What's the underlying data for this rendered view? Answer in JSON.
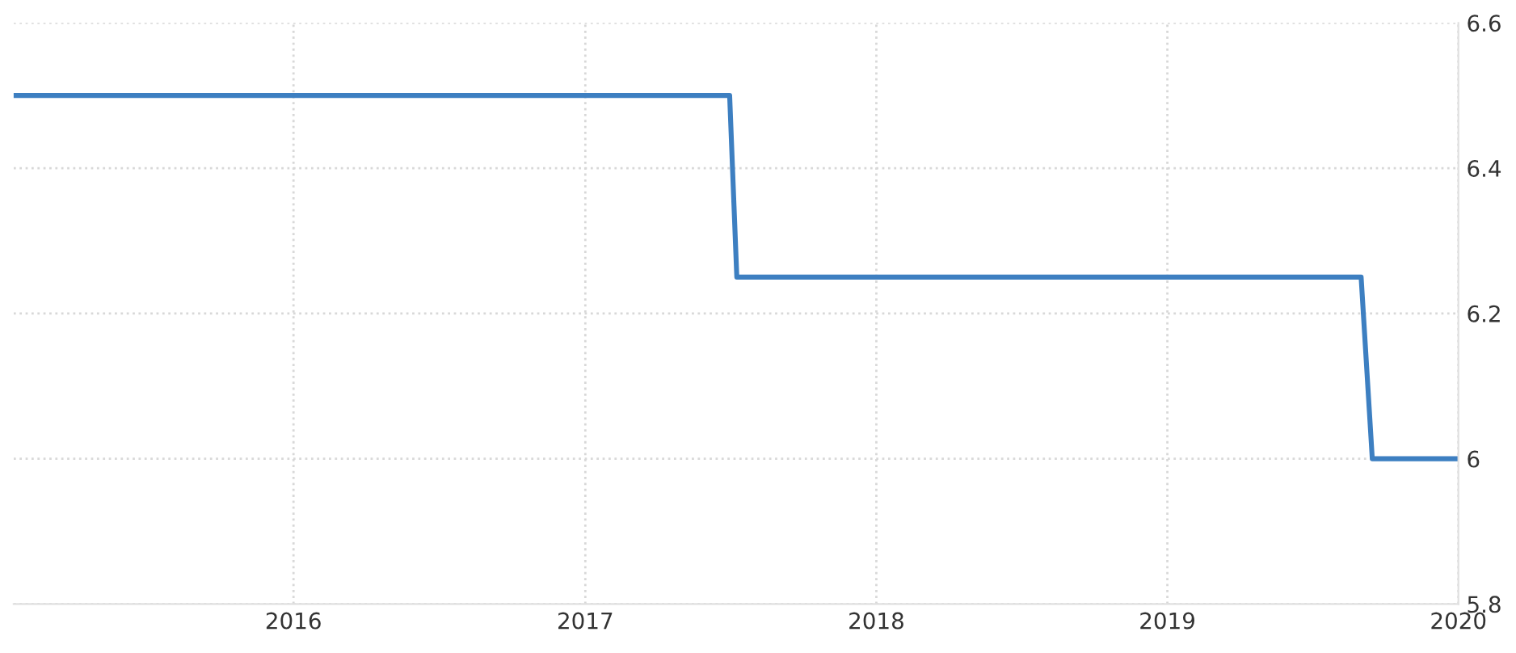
{
  "chart_data": {
    "type": "line",
    "x": [
      "2015-01-15",
      "2017-07-01",
      "2017-07-10",
      "2019-09-01",
      "2019-09-15",
      "2020-01-01"
    ],
    "series": [
      {
        "color": "#3d7fc1",
        "values": [
          6.5,
          6.5,
          6.25,
          6.25,
          6,
          6
        ]
      }
    ],
    "xlim": [
      "2015-01-15",
      "2020-01-01"
    ],
    "xticks": [
      "2016",
      "2017",
      "2018",
      "2019",
      "2020"
    ],
    "ylim": [
      5.8,
      6.6
    ],
    "yticks": [
      5.8,
      6,
      6.2,
      6.4,
      6.6
    ],
    "grid": true,
    "marker": "none",
    "line_style": "solid"
  }
}
